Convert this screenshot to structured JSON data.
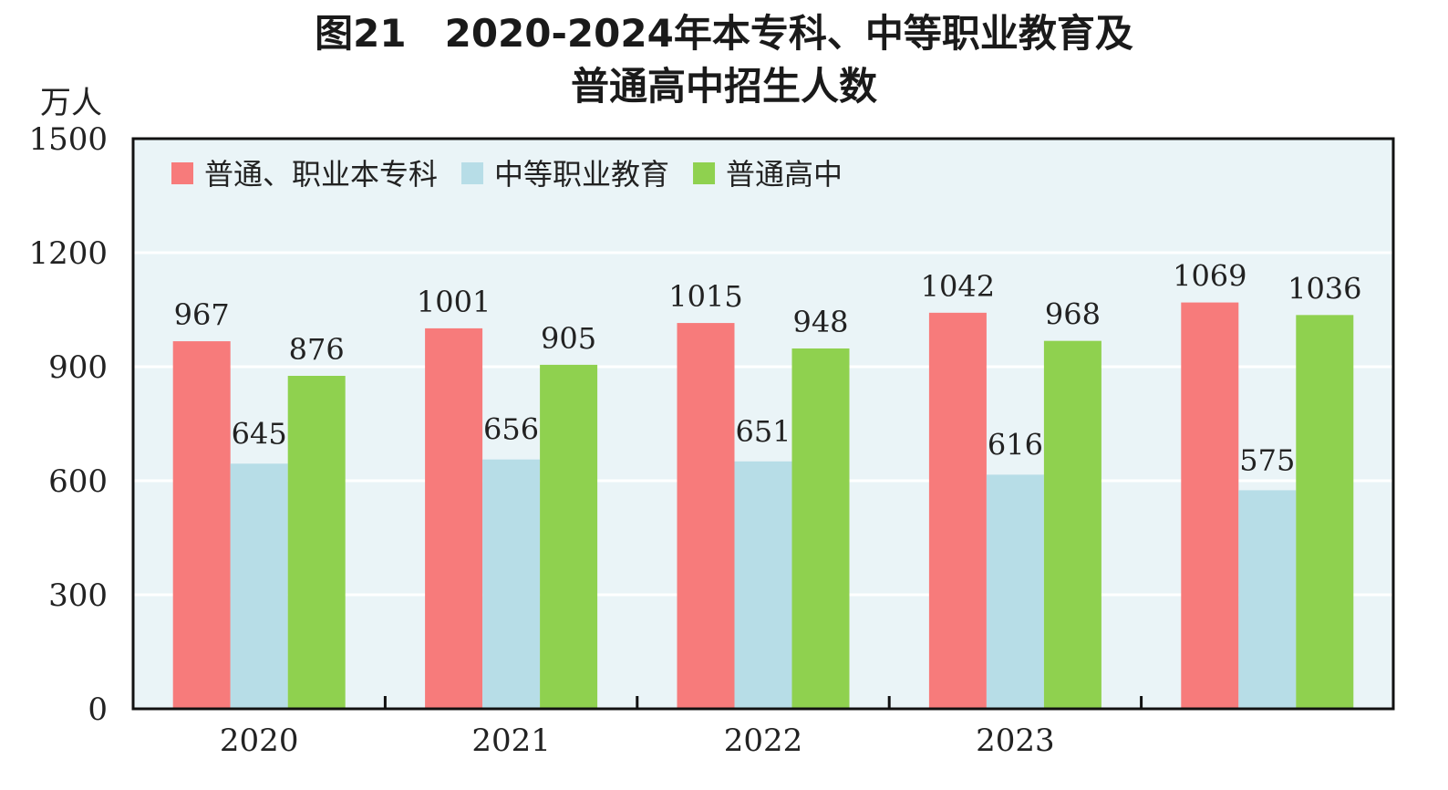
{
  "chart_data": {
    "type": "bar",
    "title_line1": "图21　2020-2024年本专科、中等职业教育及",
    "title_line2": "普通高中招生人数",
    "unit": "万人",
    "categories": [
      "2020",
      "2021",
      "2022",
      "2023",
      ""
    ],
    "series": [
      {
        "name": "普通、职业本专科",
        "color": "#f77b7b",
        "values": [
          967,
          1001,
          1015,
          1042,
          1069
        ]
      },
      {
        "name": "中等职业教育",
        "color": "#b7dde7",
        "values": [
          645,
          656,
          651,
          616,
          575
        ]
      },
      {
        "name": "普通高中",
        "color": "#8fd14f",
        "values": [
          876,
          905,
          948,
          968,
          1036
        ]
      }
    ],
    "ylim": [
      0,
      1500
    ],
    "yticks": [
      "0",
      "300",
      "600",
      "900",
      "1200",
      "1500"
    ],
    "grid": true,
    "legend_position": "top-left",
    "plot_background": "#eaf4f7"
  }
}
